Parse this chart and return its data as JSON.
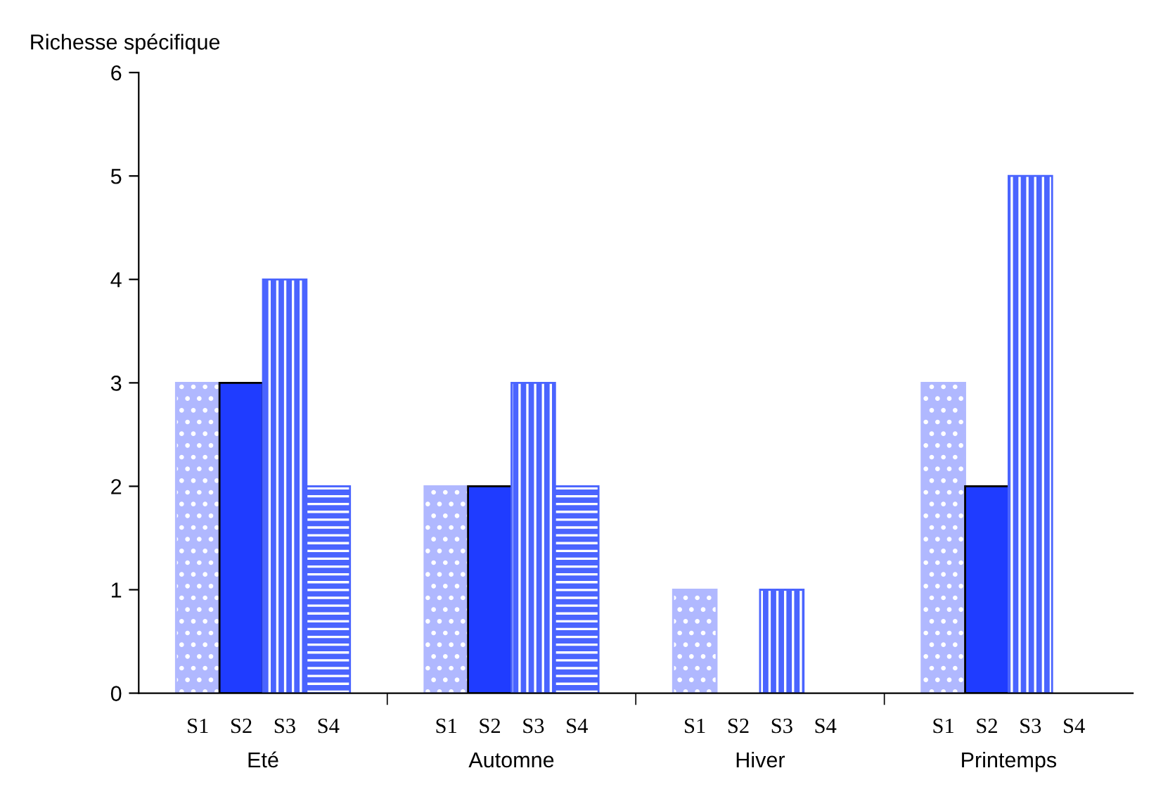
{
  "chart_data": {
    "type": "bar",
    "ylabel": "Richesse spécifique",
    "categories": [
      "Eté",
      "Automne",
      "Hiver",
      "Printemps"
    ],
    "series": [
      {
        "name": "S1",
        "color": "#b0b8ff",
        "values": [
          3,
          2,
          1,
          3
        ]
      },
      {
        "name": "S2",
        "color": "#1f3cff",
        "values": [
          3,
          2,
          0,
          2
        ]
      },
      {
        "name": "S3",
        "color": "#4a64ff",
        "values": [
          4,
          3,
          1,
          5
        ]
      },
      {
        "name": "S4",
        "color": "#4a64ff",
        "values": [
          2,
          2,
          0,
          0
        ]
      }
    ],
    "ylim": [
      0,
      6
    ],
    "yticks": [
      0,
      1,
      2,
      3,
      4,
      5,
      6
    ],
    "grid": false,
    "legend": false
  }
}
